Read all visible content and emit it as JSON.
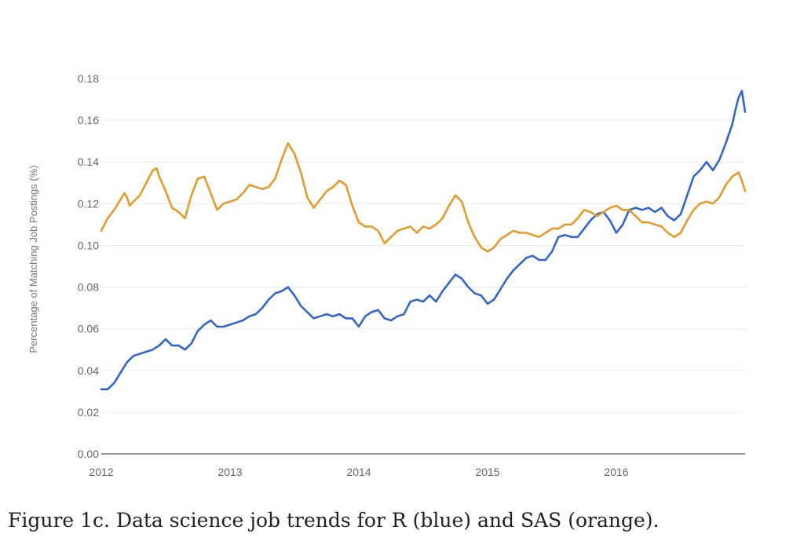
{
  "caption": "Figure 1c. Data science job trends for R (blue) and SAS (orange).",
  "chart_data": {
    "type": "line",
    "title": "",
    "xlabel": "",
    "ylabel": "Percentage of Matching Job Postings (%)",
    "xlim": [
      2012.0,
      2017.0
    ],
    "ylim": [
      0,
      0.18
    ],
    "x_ticks": [
      "2012",
      "2013",
      "2014",
      "2015",
      "2016"
    ],
    "y_ticks": [
      "0.00",
      "0.02",
      "0.04",
      "0.06",
      "0.08",
      "0.10",
      "0.12",
      "0.14",
      "0.16",
      "0.18"
    ],
    "grid": true,
    "legend": "none",
    "series": [
      {
        "color": "#3366cc",
        "points": [
          [
            2012.0,
            0.031
          ],
          [
            2012.05,
            0.031
          ],
          [
            2012.1,
            0.034
          ],
          [
            2012.15,
            0.039
          ],
          [
            2012.2,
            0.044
          ],
          [
            2012.25,
            0.047
          ],
          [
            2012.3,
            0.048
          ],
          [
            2012.35,
            0.049
          ],
          [
            2012.4,
            0.05
          ],
          [
            2012.45,
            0.052
          ],
          [
            2012.5,
            0.055
          ],
          [
            2012.55,
            0.052
          ],
          [
            2012.6,
            0.052
          ],
          [
            2012.65,
            0.05
          ],
          [
            2012.7,
            0.053
          ],
          [
            2012.75,
            0.059
          ],
          [
            2012.8,
            0.062
          ],
          [
            2012.85,
            0.064
          ],
          [
            2012.9,
            0.061
          ],
          [
            2012.95,
            0.061
          ],
          [
            2013.0,
            0.062
          ],
          [
            2013.05,
            0.063
          ],
          [
            2013.1,
            0.064
          ],
          [
            2013.15,
            0.066
          ],
          [
            2013.2,
            0.067
          ],
          [
            2013.25,
            0.07
          ],
          [
            2013.3,
            0.074
          ],
          [
            2013.35,
            0.077
          ],
          [
            2013.4,
            0.078
          ],
          [
            2013.45,
            0.08
          ],
          [
            2013.5,
            0.076
          ],
          [
            2013.55,
            0.071
          ],
          [
            2013.6,
            0.068
          ],
          [
            2013.65,
            0.065
          ],
          [
            2013.7,
            0.066
          ],
          [
            2013.75,
            0.067
          ],
          [
            2013.8,
            0.066
          ],
          [
            2013.85,
            0.067
          ],
          [
            2013.9,
            0.065
          ],
          [
            2013.95,
            0.065
          ],
          [
            2014.0,
            0.061
          ],
          [
            2014.05,
            0.066
          ],
          [
            2014.1,
            0.068
          ],
          [
            2014.15,
            0.069
          ],
          [
            2014.2,
            0.065
          ],
          [
            2014.25,
            0.064
          ],
          [
            2014.3,
            0.066
          ],
          [
            2014.35,
            0.067
          ],
          [
            2014.4,
            0.073
          ],
          [
            2014.45,
            0.074
          ],
          [
            2014.5,
            0.073
          ],
          [
            2014.55,
            0.076
          ],
          [
            2014.6,
            0.073
          ],
          [
            2014.65,
            0.078
          ],
          [
            2014.7,
            0.082
          ],
          [
            2014.75,
            0.086
          ],
          [
            2014.8,
            0.084
          ],
          [
            2014.85,
            0.08
          ],
          [
            2014.9,
            0.077
          ],
          [
            2014.95,
            0.076
          ],
          [
            2015.0,
            0.072
          ],
          [
            2015.05,
            0.074
          ],
          [
            2015.1,
            0.079
          ],
          [
            2015.15,
            0.084
          ],
          [
            2015.2,
            0.088
          ],
          [
            2015.25,
            0.091
          ],
          [
            2015.3,
            0.094
          ],
          [
            2015.35,
            0.095
          ],
          [
            2015.4,
            0.093
          ],
          [
            2015.45,
            0.093
          ],
          [
            2015.5,
            0.097
          ],
          [
            2015.55,
            0.104
          ],
          [
            2015.6,
            0.105
          ],
          [
            2015.65,
            0.104
          ],
          [
            2015.7,
            0.104
          ],
          [
            2015.75,
            0.108
          ],
          [
            2015.8,
            0.112
          ],
          [
            2015.85,
            0.115
          ],
          [
            2015.9,
            0.116
          ],
          [
            2015.95,
            0.112
          ],
          [
            2016.0,
            0.106
          ],
          [
            2016.05,
            0.11
          ],
          [
            2016.1,
            0.117
          ],
          [
            2016.15,
            0.118
          ],
          [
            2016.2,
            0.117
          ],
          [
            2016.25,
            0.118
          ],
          [
            2016.3,
            0.116
          ],
          [
            2016.35,
            0.118
          ],
          [
            2016.4,
            0.114
          ],
          [
            2016.45,
            0.112
          ],
          [
            2016.5,
            0.115
          ],
          [
            2016.55,
            0.124
          ],
          [
            2016.6,
            0.133
          ],
          [
            2016.65,
            0.136
          ],
          [
            2016.7,
            0.14
          ],
          [
            2016.75,
            0.136
          ],
          [
            2016.8,
            0.141
          ],
          [
            2016.85,
            0.149
          ],
          [
            2016.9,
            0.158
          ],
          [
            2016.925,
            0.165
          ],
          [
            2016.95,
            0.171
          ],
          [
            2016.975,
            0.174
          ],
          [
            2017.0,
            0.164
          ]
        ]
      },
      {
        "color": "#e59b2b",
        "points": [
          [
            2012.0,
            0.107
          ],
          [
            2012.05,
            0.113
          ],
          [
            2012.1,
            0.117
          ],
          [
            2012.15,
            0.122
          ],
          [
            2012.18,
            0.125
          ],
          [
            2012.2,
            0.123
          ],
          [
            2012.22,
            0.119
          ],
          [
            2012.25,
            0.121
          ],
          [
            2012.3,
            0.124
          ],
          [
            2012.35,
            0.13
          ],
          [
            2012.4,
            0.136
          ],
          [
            2012.43,
            0.137
          ],
          [
            2012.45,
            0.133
          ],
          [
            2012.5,
            0.126
          ],
          [
            2012.55,
            0.118
          ],
          [
            2012.6,
            0.116
          ],
          [
            2012.65,
            0.113
          ],
          [
            2012.7,
            0.124
          ],
          [
            2012.75,
            0.132
          ],
          [
            2012.8,
            0.133
          ],
          [
            2012.85,
            0.125
          ],
          [
            2012.9,
            0.117
          ],
          [
            2012.95,
            0.12
          ],
          [
            2013.0,
            0.121
          ],
          [
            2013.05,
            0.122
          ],
          [
            2013.1,
            0.125
          ],
          [
            2013.15,
            0.129
          ],
          [
            2013.2,
            0.128
          ],
          [
            2013.25,
            0.127
          ],
          [
            2013.3,
            0.128
          ],
          [
            2013.35,
            0.132
          ],
          [
            2013.4,
            0.141
          ],
          [
            2013.45,
            0.149
          ],
          [
            2013.5,
            0.144
          ],
          [
            2013.55,
            0.135
          ],
          [
            2013.6,
            0.123
          ],
          [
            2013.65,
            0.118
          ],
          [
            2013.7,
            0.122
          ],
          [
            2013.75,
            0.126
          ],
          [
            2013.8,
            0.128
          ],
          [
            2013.85,
            0.131
          ],
          [
            2013.9,
            0.129
          ],
          [
            2013.95,
            0.119
          ],
          [
            2014.0,
            0.111
          ],
          [
            2014.05,
            0.109
          ],
          [
            2014.1,
            0.109
          ],
          [
            2014.15,
            0.107
          ],
          [
            2014.2,
            0.101
          ],
          [
            2014.25,
            0.104
          ],
          [
            2014.3,
            0.107
          ],
          [
            2014.35,
            0.108
          ],
          [
            2014.4,
            0.109
          ],
          [
            2014.45,
            0.106
          ],
          [
            2014.5,
            0.109
          ],
          [
            2014.55,
            0.108
          ],
          [
            2014.6,
            0.11
          ],
          [
            2014.65,
            0.113
          ],
          [
            2014.7,
            0.119
          ],
          [
            2014.75,
            0.124
          ],
          [
            2014.8,
            0.121
          ],
          [
            2014.85,
            0.111
          ],
          [
            2014.9,
            0.104
          ],
          [
            2014.95,
            0.099
          ],
          [
            2015.0,
            0.097
          ],
          [
            2015.05,
            0.099
          ],
          [
            2015.1,
            0.103
          ],
          [
            2015.15,
            0.105
          ],
          [
            2015.2,
            0.107
          ],
          [
            2015.25,
            0.106
          ],
          [
            2015.3,
            0.106
          ],
          [
            2015.35,
            0.105
          ],
          [
            2015.4,
            0.104
          ],
          [
            2015.45,
            0.106
          ],
          [
            2015.5,
            0.108
          ],
          [
            2015.55,
            0.108
          ],
          [
            2015.6,
            0.11
          ],
          [
            2015.65,
            0.11
          ],
          [
            2015.7,
            0.113
          ],
          [
            2015.75,
            0.117
          ],
          [
            2015.8,
            0.116
          ],
          [
            2015.85,
            0.114
          ],
          [
            2015.9,
            0.116
          ],
          [
            2015.95,
            0.118
          ],
          [
            2016.0,
            0.119
          ],
          [
            2016.05,
            0.117
          ],
          [
            2016.1,
            0.117
          ],
          [
            2016.15,
            0.114
          ],
          [
            2016.2,
            0.111
          ],
          [
            2016.25,
            0.111
          ],
          [
            2016.3,
            0.11
          ],
          [
            2016.35,
            0.109
          ],
          [
            2016.4,
            0.106
          ],
          [
            2016.45,
            0.104
          ],
          [
            2016.5,
            0.106
          ],
          [
            2016.55,
            0.112
          ],
          [
            2016.6,
            0.117
          ],
          [
            2016.65,
            0.12
          ],
          [
            2016.7,
            0.121
          ],
          [
            2016.75,
            0.12
          ],
          [
            2016.8,
            0.123
          ],
          [
            2016.85,
            0.129
          ],
          [
            2016.9,
            0.133
          ],
          [
            2016.95,
            0.135
          ],
          [
            2016.975,
            0.131
          ],
          [
            2017.0,
            0.126
          ]
        ]
      }
    ]
  }
}
